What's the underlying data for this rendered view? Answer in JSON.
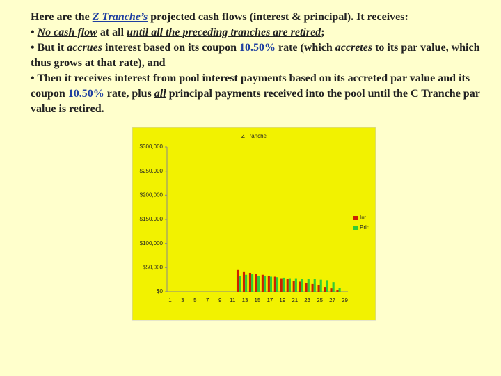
{
  "text": {
    "paragraphs": [
      {
        "runs": [
          {
            "text": "Here are the "
          },
          {
            "text": "Z Tranche’s",
            "italic": true,
            "underline": true,
            "color": "#1f3fa0"
          },
          {
            "text": " projected cash flows (interest & principal). It receives:"
          }
        ]
      },
      {
        "runs": [
          {
            "text": "• "
          },
          {
            "text": "No cash flow",
            "italic": true,
            "underline": true
          },
          {
            "text": " at all "
          },
          {
            "text": "until all the preceding tranches are retired",
            "italic": true,
            "underline": true
          },
          {
            "text": ";"
          }
        ]
      },
      {
        "runs": [
          {
            "text": "• But it "
          },
          {
            "text": "accrues",
            "italic": true,
            "underline": true
          },
          {
            "text": " interest based on its coupon "
          },
          {
            "text": "10.50%",
            "color": "#1f3fa0"
          },
          {
            "text": " rate (which "
          },
          {
            "text": "accretes",
            "italic": true
          },
          {
            "text": " to its par value, which thus grows at that rate), and"
          }
        ]
      },
      {
        "runs": [
          {
            "text": "• Then it receives interest from pool interest payments based on its accreted par value and its coupon "
          },
          {
            "text": "10.50%",
            "color": "#1f3fa0"
          },
          {
            "text": " rate, plus "
          },
          {
            "text": "all",
            "italic": true,
            "underline": true
          },
          {
            "text": " principal payments received into the pool until the C Tranche par value is retired."
          }
        ]
      }
    ]
  },
  "chart_data": {
    "type": "bar",
    "title": "Z Tranche",
    "categories": [
      "1",
      null,
      "3",
      null,
      "5",
      null,
      "7",
      null,
      "9",
      null,
      "11",
      null,
      "13",
      null,
      "15",
      null,
      "17",
      null,
      "19",
      null,
      "21",
      null,
      "23",
      null,
      "25",
      null,
      "27",
      null,
      "29"
    ],
    "series": [
      {
        "name": "Int",
        "color": "#cc2200",
        "values": [
          0,
          0,
          0,
          0,
          0,
          0,
          0,
          0,
          0,
          0,
          0,
          45000,
          42000,
          39000,
          37000,
          35000,
          33000,
          31000,
          28000,
          26000,
          23000,
          21000,
          18000,
          16000,
          13000,
          10000,
          7000,
          4000,
          0
        ]
      },
      {
        "name": "Prin",
        "color": "#33cc33",
        "values": [
          0,
          0,
          0,
          0,
          0,
          0,
          0,
          0,
          0,
          0,
          0,
          33000,
          35000,
          36000,
          33000,
          32000,
          31000,
          30000,
          29000,
          28000,
          28000,
          27000,
          27000,
          26000,
          25000,
          24000,
          20000,
          8000,
          0
        ]
      }
    ],
    "ylim": [
      0,
      300000
    ],
    "yticks": [
      {
        "value": 0,
        "label": "$0"
      },
      {
        "value": 50000,
        "label": "$50,000"
      },
      {
        "value": 100000,
        "label": "$100,000"
      },
      {
        "value": 150000,
        "label": "$150,000"
      },
      {
        "value": 200000,
        "label": "$200,000"
      },
      {
        "value": 250000,
        "label": "$250,000"
      },
      {
        "value": 300000,
        "label": "$300,000"
      }
    ],
    "legend": "right",
    "background": "#f2f200"
  }
}
